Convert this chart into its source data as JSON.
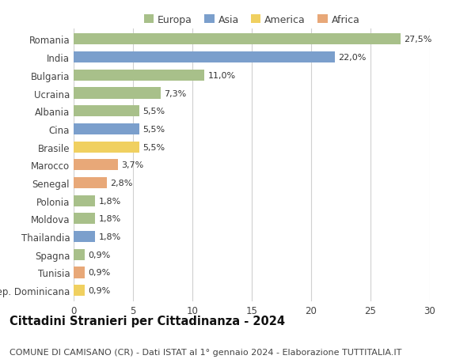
{
  "countries": [
    "Romania",
    "India",
    "Bulgaria",
    "Ucraina",
    "Albania",
    "Cina",
    "Brasile",
    "Marocco",
    "Senegal",
    "Polonia",
    "Moldova",
    "Thailandia",
    "Spagna",
    "Tunisia",
    "Rep. Dominicana"
  ],
  "values": [
    27.5,
    22.0,
    11.0,
    7.3,
    5.5,
    5.5,
    5.5,
    3.7,
    2.8,
    1.8,
    1.8,
    1.8,
    0.9,
    0.9,
    0.9
  ],
  "labels": [
    "27,5%",
    "22,0%",
    "11,0%",
    "7,3%",
    "5,5%",
    "5,5%",
    "5,5%",
    "3,7%",
    "2,8%",
    "1,8%",
    "1,8%",
    "1,8%",
    "0,9%",
    "0,9%",
    "0,9%"
  ],
  "continents": [
    "Europa",
    "Asia",
    "Europa",
    "Europa",
    "Europa",
    "Asia",
    "America",
    "Africa",
    "Africa",
    "Europa",
    "Europa",
    "Asia",
    "Europa",
    "Africa",
    "America"
  ],
  "colors": {
    "Europa": "#a8c08a",
    "Asia": "#7b9fcc",
    "America": "#f0d060",
    "Africa": "#e8a878"
  },
  "legend_order": [
    "Europa",
    "Asia",
    "America",
    "Africa"
  ],
  "title": "Cittadini Stranieri per Cittadinanza - 2024",
  "subtitle": "COMUNE DI CAMISANO (CR) - Dati ISTAT al 1° gennaio 2024 - Elaborazione TUTTITALIA.IT",
  "xlim": [
    0,
    30
  ],
  "xticks": [
    0,
    5,
    10,
    15,
    20,
    25,
    30
  ],
  "background_color": "#ffffff",
  "grid_color": "#d0d0d0",
  "bar_label_fontsize": 8,
  "ytick_fontsize": 8.5,
  "xtick_fontsize": 8.5,
  "title_fontsize": 10.5,
  "subtitle_fontsize": 8,
  "legend_fontsize": 9
}
